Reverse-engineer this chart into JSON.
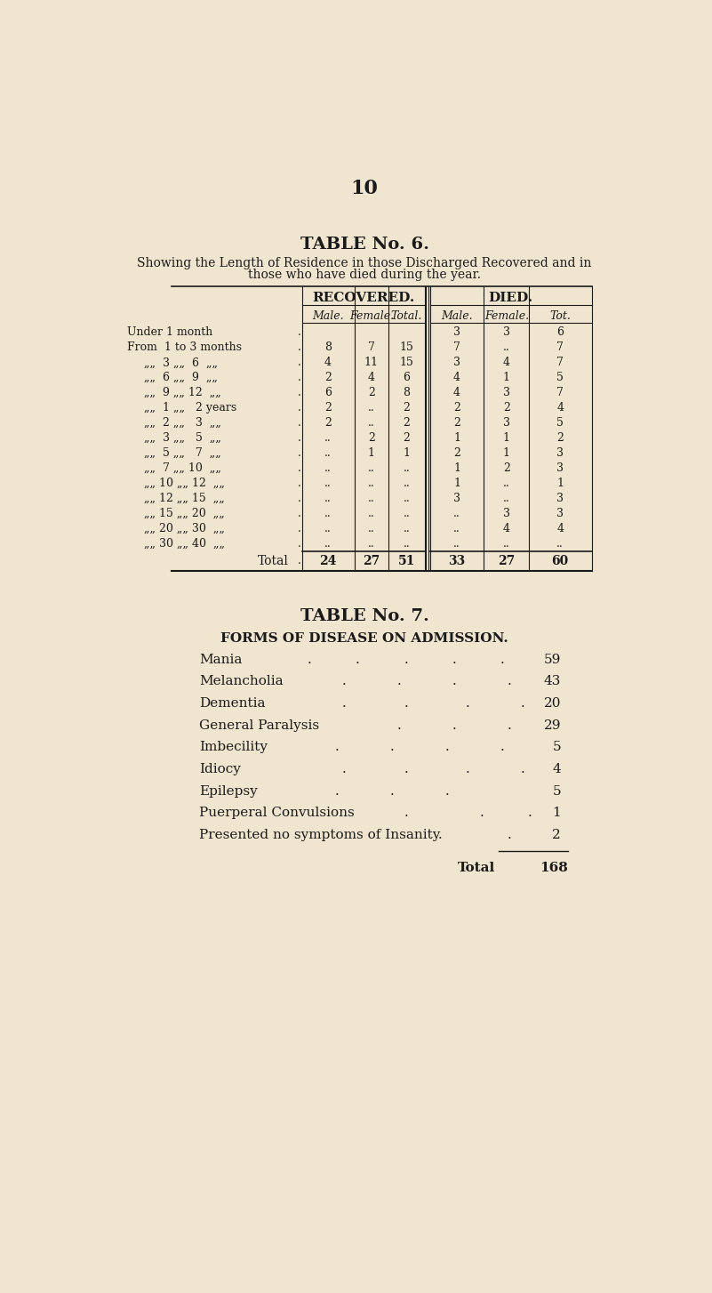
{
  "bg_color": "#f0e6d0",
  "page_number": "10",
  "table6_title": "TABLE No. 6.",
  "table6_subtitle_line1": "Showing the Length of Residence in those Discharged Recovered and in",
  "table6_subtitle_line2": "those who have died during the year.",
  "col_headers_1_rec": "RECOVERED.",
  "col_headers_1_died": "DIED.",
  "col_headers_2": [
    "Male.",
    "Female.",
    "Total.",
    "Male.",
    "Female.",
    "Tot."
  ],
  "row_labels": [
    "Under 1 month",
    "From  1 to 3 months",
    "„„  3 „„  6  „„",
    "„„  6 „„  9  „„",
    "„„  9 „„ 12  „„",
    "„„  1 „„   2 years",
    "„„  2 „„   3  „„",
    "„„  3 „„   5  „„",
    "„„  5 „„   7  „„",
    "„„  7 „„ 10  „„",
    "„„ 10 „„ 12  „„",
    "„„ 12 „„ 15  „„",
    "„„ 15 „„ 20  „„",
    "„„ 20 „„ 30  „„",
    "„„ 30 „„ 40  „„"
  ],
  "table_data": [
    [
      "",
      "",
      "",
      "3",
      "3",
      "6"
    ],
    [
      "8",
      "7",
      "15",
      "7",
      "..",
      "7"
    ],
    [
      "4",
      "11",
      "15",
      "3",
      "4",
      "7"
    ],
    [
      "2",
      "4",
      "6",
      "4",
      "1",
      "5"
    ],
    [
      "6",
      "2",
      "8",
      "4",
      "3",
      "7"
    ],
    [
      "2",
      "..",
      "2",
      "2",
      "2",
      "4"
    ],
    [
      "2",
      "..",
      "2",
      "2",
      "3",
      "5"
    ],
    [
      "..",
      "2",
      "2",
      "1",
      "1",
      "2"
    ],
    [
      "..",
      "1",
      "1",
      "2",
      "1",
      "3"
    ],
    [
      "..",
      "..",
      "..",
      "1",
      "2",
      "3"
    ],
    [
      "..",
      "..",
      "..",
      "1",
      "..",
      "1"
    ],
    [
      "..",
      "..",
      "..",
      "3",
      "..",
      "3"
    ],
    [
      "..",
      "..",
      "..",
      "..",
      "3",
      "3"
    ],
    [
      "..",
      "..",
      "..",
      "..",
      "4",
      "4"
    ],
    [
      "..",
      "..",
      "..",
      "..",
      "..",
      ".."
    ]
  ],
  "total_row": [
    "24",
    "27",
    "51",
    "33",
    "27",
    "60"
  ],
  "table7_title": "TABLE No. 7.",
  "table7_subtitle": "FORMS OF DISEASE ON ADMISSION.",
  "diseases": [
    "Mania",
    "Melancholia",
    "Dementia",
    "General Paralysis",
    "Imbecility",
    "Idiocy",
    "Epilepsy",
    "Puerperal Convulsions",
    "Presented no symptoms of Insanity"
  ],
  "disease_dots": [
    [
      320,
      390,
      460,
      530,
      600
    ],
    [
      370,
      450,
      530,
      610
    ],
    [
      370,
      460,
      550,
      630
    ],
    [
      450,
      530,
      610
    ],
    [
      360,
      440,
      520,
      600
    ],
    [
      370,
      460,
      550,
      630
    ],
    [
      360,
      440,
      520
    ],
    [
      460,
      570,
      640
    ],
    [
      510,
      610
    ]
  ],
  "disease_counts": [
    59,
    43,
    20,
    29,
    5,
    4,
    5,
    1,
    2
  ],
  "disease_total": 168
}
